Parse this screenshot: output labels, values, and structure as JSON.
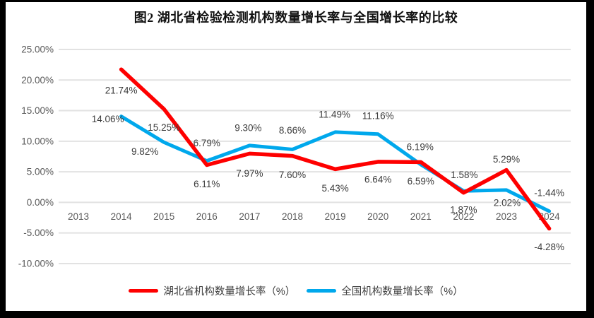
{
  "chart_data": {
    "type": "line",
    "title": "图2 湖北省检验检测机构数量增长率与全国增长率的比较",
    "categories": [
      "2013",
      "2014",
      "2015",
      "2016",
      "2017",
      "2018",
      "2019",
      "2020",
      "2021",
      "2022",
      "2023",
      "2024"
    ],
    "series": [
      {
        "name": "湖北省机构数量增长率（%）",
        "color": "#FE0000",
        "values": [
          null,
          21.74,
          15.25,
          6.11,
          7.97,
          7.6,
          5.43,
          6.64,
          6.59,
          1.58,
          5.29,
          -4.28
        ]
      },
      {
        "name": "全国机构数量增长率（%）",
        "color": "#00A8EC",
        "values": [
          null,
          14.06,
          9.82,
          6.79,
          9.3,
          8.66,
          11.49,
          11.16,
          6.19,
          1.87,
          2.02,
          -1.44
        ]
      }
    ],
    "ylim": [
      -10,
      25
    ],
    "ytick_step": 5,
    "ytick_labels": [
      "25.00%",
      "20.00%",
      "15.00%",
      "10.00%",
      "5.00%",
      "0.00%",
      "-5.00%",
      "-10.00%"
    ],
    "grid": true,
    "data_labels": true,
    "label_format": "0.00%",
    "legend_position": "bottom"
  },
  "styles": {
    "frame_color": "#000000",
    "plot_background": "#FFFFFF",
    "grid_color": "#E2E2E2",
    "tick_color": "#595959",
    "data_label_color": "#3D3D3D",
    "title_color": "#111111"
  }
}
